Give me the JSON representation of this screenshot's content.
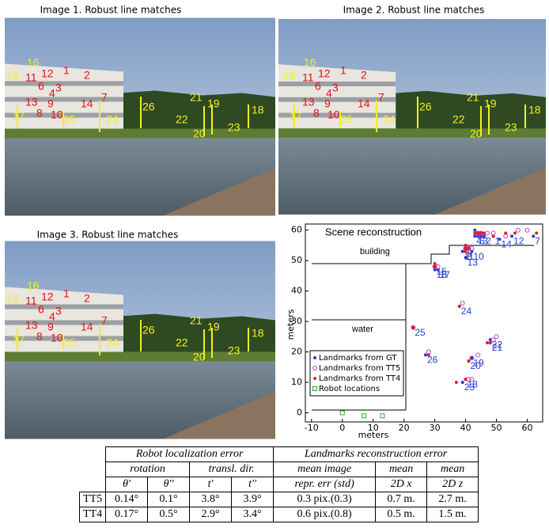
{
  "images": [
    {
      "title": "Image 1. Robust line matches",
      "labels": [
        "16",
        "15",
        "11",
        "12",
        "1",
        "2",
        "6",
        "4",
        "3",
        "13",
        "9",
        "14",
        "7",
        "8",
        "10",
        "17",
        "25",
        "24",
        "26",
        "21",
        "19",
        "22",
        "20",
        "23",
        "18"
      ]
    },
    {
      "title": "Image 2. Robust line matches",
      "labels": [
        "16",
        "15",
        "11",
        "12",
        "1",
        "2",
        "6",
        "4",
        "3",
        "13",
        "9",
        "14",
        "7",
        "8",
        "10",
        "17",
        "25",
        "24",
        "26",
        "21",
        "19",
        "22",
        "20",
        "23",
        "18"
      ]
    },
    {
      "title": "Image 3. Robust line matches",
      "labels": [
        "16",
        "15",
        "11",
        "12",
        "1",
        "2",
        "6",
        "4",
        "3",
        "13",
        "9",
        "14",
        "7",
        "8",
        "10",
        "17",
        "25",
        "24",
        "26",
        "21",
        "19",
        "22",
        "20",
        "23",
        "18"
      ]
    }
  ],
  "chart_data": {
    "type": "scatter",
    "title": "Scene reconstruction",
    "xlabel": "meters",
    "ylabel": "meters",
    "xlim": [
      -12,
      65
    ],
    "ylim": [
      -3,
      62
    ],
    "xticks": [
      -10,
      0,
      10,
      20,
      30,
      40,
      50,
      60
    ],
    "yticks": [
      0,
      10,
      20,
      30,
      40,
      50,
      60
    ],
    "annotations": [
      "building",
      "water"
    ],
    "series": [
      {
        "name": "Landmarks from GT",
        "color": "#2340d8",
        "marker": "dot",
        "x": [
          49,
          46,
          45,
          43,
          43,
          44,
          62,
          40,
          40,
          42,
          39,
          55,
          40,
          51,
          30,
          30,
          31,
          40,
          42,
          41,
          48,
          48,
          39,
          38,
          23,
          27
        ],
        "values": [
          58,
          58,
          58,
          58,
          60,
          58,
          58,
          53,
          54,
          53,
          53,
          58,
          51,
          57,
          48,
          47,
          47,
          11,
          18,
          17,
          23,
          24,
          10,
          35,
          28,
          19
        ],
        "point_labels": [
          "1",
          "2",
          "3",
          "4",
          "5",
          "6",
          "7",
          "8",
          "9",
          "10",
          "11",
          "12",
          "13",
          "14",
          "15",
          "16",
          "17",
          "18",
          "19",
          "20",
          "21",
          "22",
          "23",
          "24",
          "25",
          "26"
        ]
      },
      {
        "name": "Landmarks from TT5",
        "color": "#c040c8",
        "marker": "circle",
        "x": [
          49,
          47,
          45,
          44,
          44,
          45,
          60,
          40,
          41,
          42,
          40,
          57,
          41,
          53,
          30,
          30,
          31,
          42,
          44,
          42,
          49,
          50,
          41,
          39,
          23,
          28
        ],
        "values": [
          59,
          59,
          59,
          59,
          59,
          58,
          60,
          54,
          54,
          54,
          54,
          60,
          52,
          58,
          48,
          48,
          48,
          11,
          19,
          18,
          24,
          25,
          11,
          36,
          28,
          20
        ],
        "point_labels": null
      },
      {
        "name": "Landmarks from TT4",
        "color": "#e02020",
        "marker": "dot",
        "x": [
          49,
          46,
          45,
          44,
          43,
          45,
          63,
          40,
          40,
          41,
          40,
          56,
          40,
          53,
          30,
          30,
          30,
          40,
          41,
          41,
          47,
          48,
          37,
          38,
          23,
          28
        ],
        "values": [
          58,
          59,
          59,
          59,
          59,
          59,
          59,
          54,
          55,
          54,
          54,
          59,
          53,
          59,
          48,
          48,
          49,
          11,
          17,
          17,
          23,
          23,
          10,
          35,
          28,
          19
        ],
        "point_labels": null
      },
      {
        "name": "Robot locations",
        "color": "#22b022",
        "marker": "square",
        "x": [
          0,
          7,
          13
        ],
        "values": [
          0,
          -1,
          -1
        ],
        "point_labels": null
      }
    ]
  },
  "table": {
    "header": [
      [
        "Robot localization error",
        "Landmarks reconstruction error"
      ],
      [
        "rotation",
        "transl. dir.",
        "mean image",
        "mean",
        "mean"
      ],
      [
        "θ′",
        "θ′′",
        "t′",
        "t′′",
        "repr. err (std)",
        "2D x",
        "2D z"
      ]
    ],
    "rows": [
      [
        "TT5",
        "0.14°",
        "0.1°",
        "3.8°",
        "3.9°",
        "0.3 pix.(0.3)",
        "0.7 m.",
        "2.7 m."
      ],
      [
        "TT4",
        "0.17°",
        "0.5°",
        "2.9°",
        "3.4°",
        "0.6 pix.(0.8)",
        "0.5 m.",
        "1.5 m."
      ]
    ]
  }
}
